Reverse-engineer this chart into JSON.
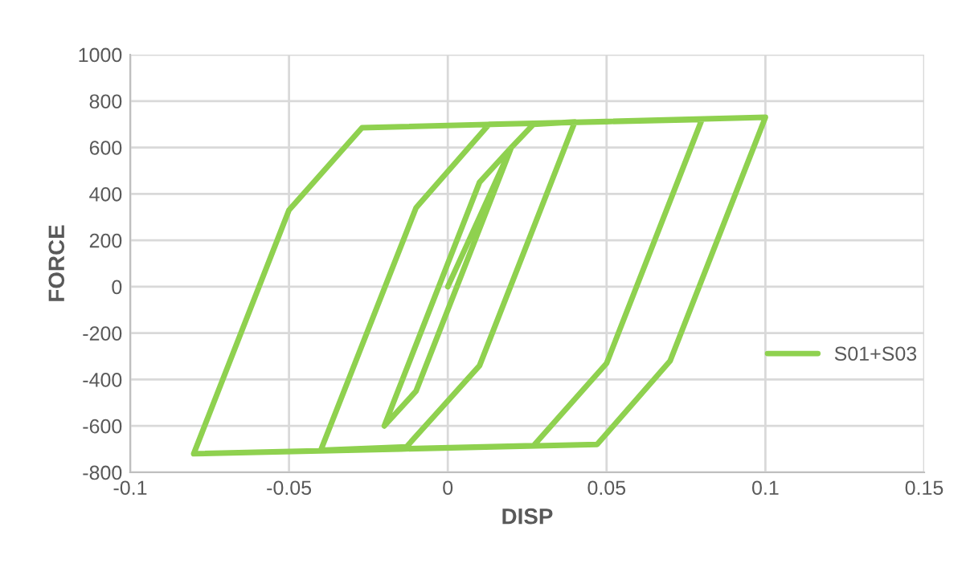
{
  "chart_data": {
    "type": "line",
    "xlabel": "DISP",
    "ylabel": "FORCE",
    "series": [
      {
        "name": "S01+S03",
        "color": "#8fd14f",
        "x": [
          0,
          0.02,
          -0.01,
          -0.02,
          0.01,
          0.02,
          0.027,
          0.04,
          0.01,
          -0.013,
          -0.04,
          -0.01,
          0.013,
          0.08,
          0.05,
          0.027,
          -0.08,
          -0.05,
          -0.027,
          0.1,
          0.07,
          0.047,
          -0.08
        ],
        "values": [
          0,
          600,
          -450,
          -600,
          450,
          600,
          700,
          710,
          -340,
          -690,
          -705,
          340,
          700,
          720,
          -330,
          -685,
          -720,
          330,
          685,
          730,
          -320,
          -680,
          -720
        ]
      }
    ],
    "xlim": [
      -0.1,
      0.15
    ],
    "xticks": [
      -0.1,
      -0.05,
      0,
      0.05,
      0.1,
      0.15
    ],
    "ylim": [
      -800,
      1000
    ],
    "yticks": [
      -800,
      -600,
      -400,
      -200,
      0,
      200,
      400,
      600,
      800,
      1000
    ],
    "grid": true,
    "legend": "right",
    "marker": "none",
    "line_style": "solid"
  }
}
